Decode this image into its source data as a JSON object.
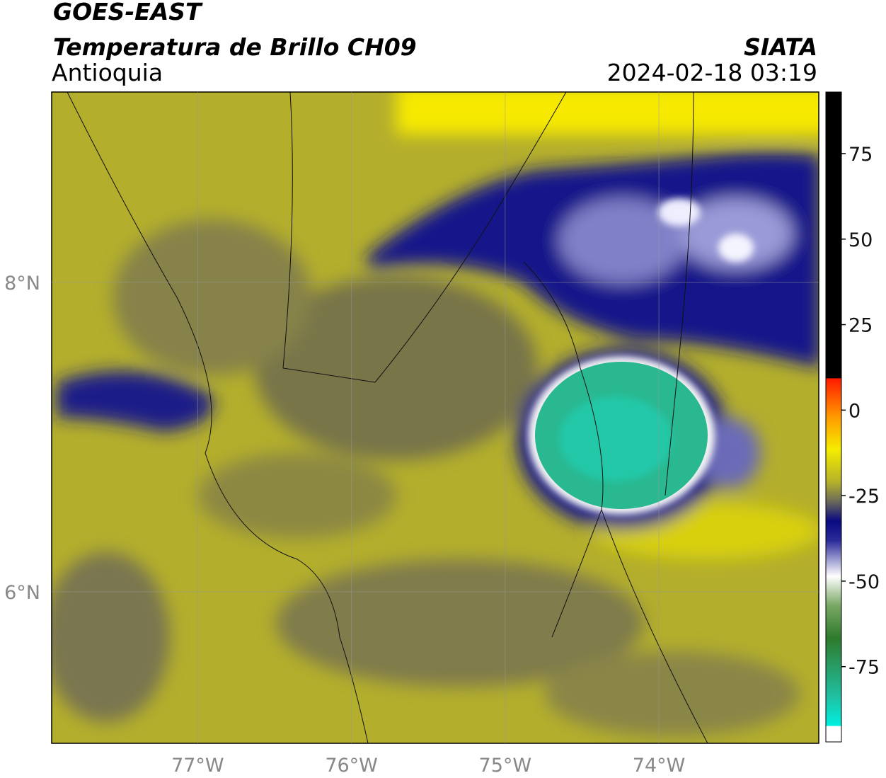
{
  "header": {
    "title": "GOES-EAST",
    "subtitle": "Temperatura de Brillo CH09",
    "region": "Antioquia",
    "source": "SIATA",
    "datetime": "2024-02-18 03:19"
  },
  "map": {
    "xlim": [
      -77.95,
      -72.96
    ],
    "ylim": [
      5.02,
      9.23
    ],
    "xticks": [
      {
        "value": -77,
        "label": "77°W"
      },
      {
        "value": -76,
        "label": "76°W"
      },
      {
        "value": -75,
        "label": "75°W"
      },
      {
        "value": -74,
        "label": "74°W"
      }
    ],
    "yticks": [
      {
        "value": 8,
        "label": "8°N"
      },
      {
        "value": 6,
        "label": "6°N"
      }
    ]
  },
  "colorbar": {
    "lim": [
      -97,
      93
    ],
    "ticks": [
      75,
      50,
      25,
      0,
      -25,
      -50,
      -75
    ]
  }
}
